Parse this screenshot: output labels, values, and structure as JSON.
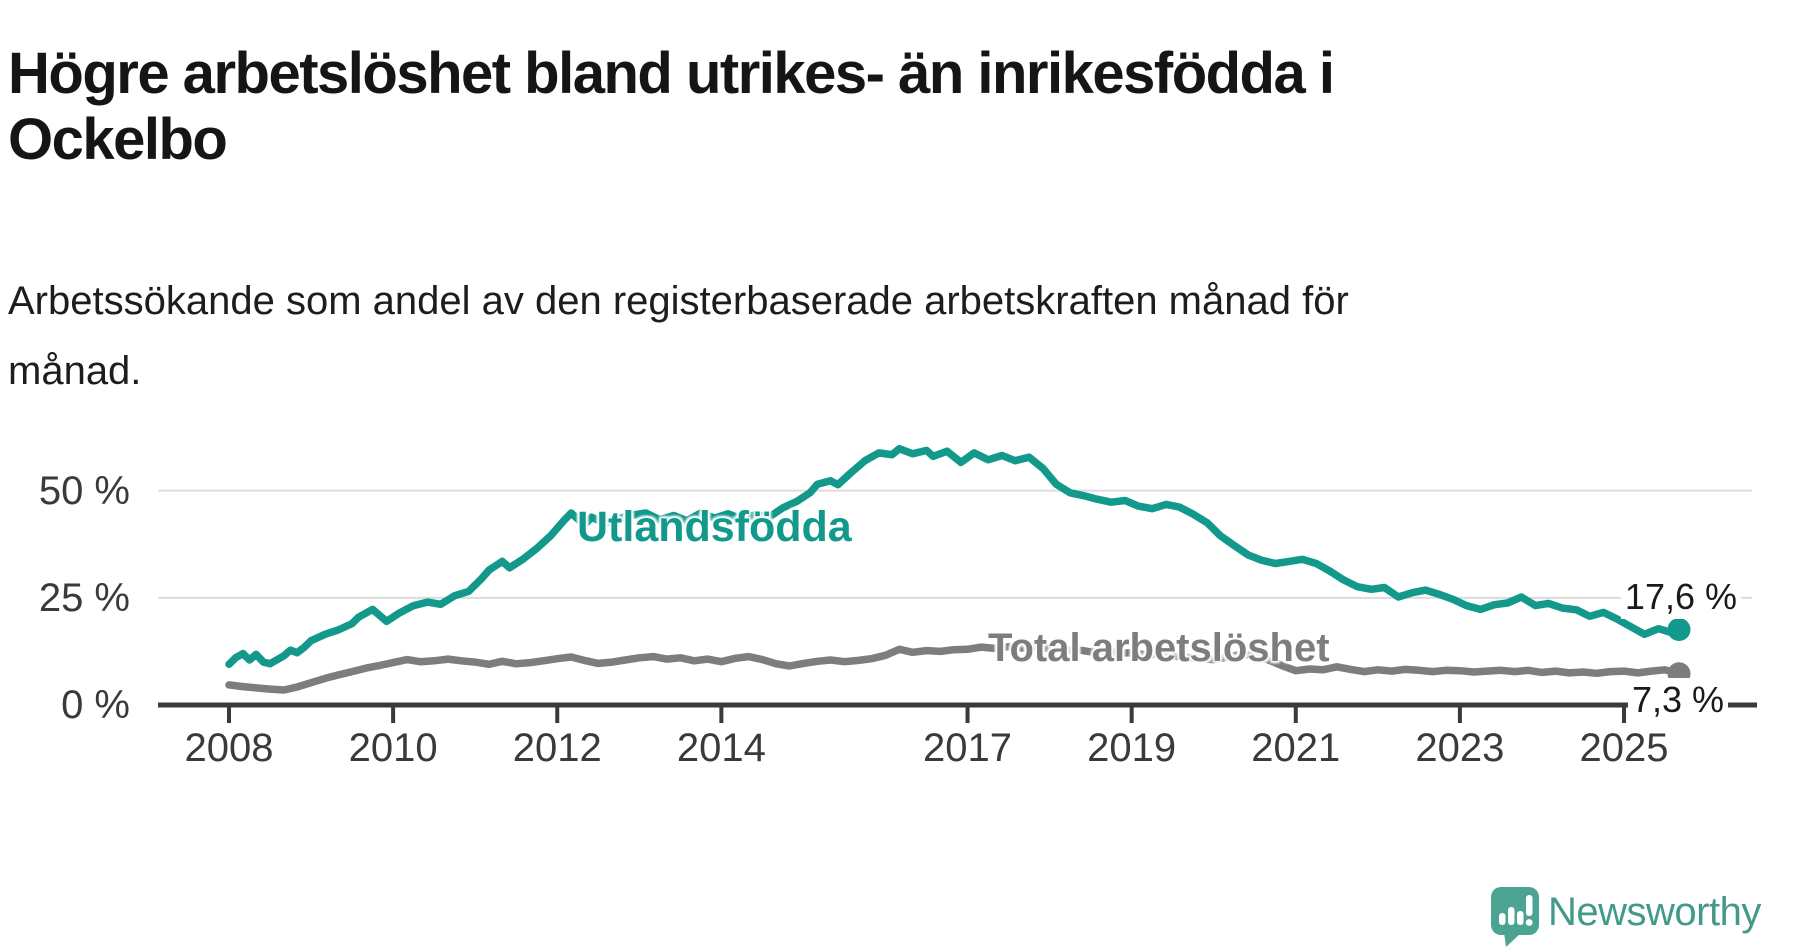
{
  "page": {
    "title": "Högre arbetslöshet bland utrikes- än inrikesfödda i\nOckelbo",
    "subtitle": "Arbetssökande som andel av den registerbaserade arbetskraften månad för\nmånad.",
    "branding": {
      "logo_text": "Newsworthy",
      "logo_icon": "newsworthy-speech-bubble-bars-icon"
    }
  },
  "colors": {
    "series_foreign_born": "#12998b",
    "series_total": "#7d7d80",
    "grid": "#dcdcdc",
    "axis": "#3a3a3a",
    "text": "#1a1a1a",
    "logo": "#4ba392"
  },
  "chart_data": {
    "type": "line",
    "unit": "%",
    "grid": "horizontal",
    "legend_position": "inline-labels",
    "x_range": [
      2008,
      2025.75
    ],
    "y_axis": {
      "range": [
        0,
        62
      ],
      "ticks": [
        {
          "value": 0,
          "label": "0 %"
        },
        {
          "value": 25,
          "label": "25 %"
        },
        {
          "value": 50,
          "label": "50 %"
        }
      ]
    },
    "x_axis": {
      "ticks": [
        {
          "year": 2008,
          "label": "2008"
        },
        {
          "year": 2010,
          "label": "2010"
        },
        {
          "year": 2012,
          "label": "2012"
        },
        {
          "year": 2014,
          "label": "2014"
        },
        {
          "year": 2017,
          "label": "2017"
        },
        {
          "year": 2019,
          "label": "2019"
        },
        {
          "year": 2021,
          "label": "2021"
        },
        {
          "year": 2023,
          "label": "2023"
        },
        {
          "year": 2025,
          "label": "2025"
        }
      ]
    },
    "series": [
      {
        "name": "Utlandsfödda",
        "color": "#12998b",
        "end_value": 17.6,
        "end_label": "17,6 %",
        "points": [
          [
            2008.0,
            9.5
          ],
          [
            2008.08,
            11.0
          ],
          [
            2008.17,
            12.0
          ],
          [
            2008.25,
            10.5
          ],
          [
            2008.33,
            11.8
          ],
          [
            2008.42,
            10.0
          ],
          [
            2008.5,
            9.6
          ],
          [
            2008.58,
            10.5
          ],
          [
            2008.67,
            11.5
          ],
          [
            2008.75,
            12.8
          ],
          [
            2008.83,
            12.2
          ],
          [
            2008.92,
            13.5
          ],
          [
            2009.0,
            15.0
          ],
          [
            2009.17,
            16.5
          ],
          [
            2009.33,
            17.5
          ],
          [
            2009.5,
            19.0
          ],
          [
            2009.58,
            20.5
          ],
          [
            2009.75,
            22.3
          ],
          [
            2009.92,
            19.5
          ],
          [
            2010.08,
            21.5
          ],
          [
            2010.25,
            23.2
          ],
          [
            2010.42,
            24.0
          ],
          [
            2010.58,
            23.5
          ],
          [
            2010.75,
            25.5
          ],
          [
            2010.92,
            26.5
          ],
          [
            2011.08,
            29.5
          ],
          [
            2011.17,
            31.5
          ],
          [
            2011.33,
            33.5
          ],
          [
            2011.42,
            32.0
          ],
          [
            2011.58,
            34.0
          ],
          [
            2011.75,
            36.5
          ],
          [
            2011.92,
            39.5
          ],
          [
            2012.08,
            43.0
          ],
          [
            2012.17,
            44.8
          ],
          [
            2012.33,
            42.0
          ],
          [
            2012.42,
            43.8
          ],
          [
            2012.58,
            42.3
          ],
          [
            2012.75,
            43.5
          ],
          [
            2012.92,
            44.3
          ],
          [
            2013.08,
            44.8
          ],
          [
            2013.25,
            43.2
          ],
          [
            2013.42,
            44.2
          ],
          [
            2013.58,
            43.0
          ],
          [
            2013.75,
            44.8
          ],
          [
            2013.92,
            43.6
          ],
          [
            2014.08,
            44.6
          ],
          [
            2014.25,
            43.4
          ],
          [
            2014.42,
            44.4
          ],
          [
            2014.58,
            43.8
          ],
          [
            2014.75,
            46.0
          ],
          [
            2014.92,
            47.5
          ],
          [
            2015.08,
            49.5
          ],
          [
            2015.17,
            51.5
          ],
          [
            2015.33,
            52.3
          ],
          [
            2015.42,
            51.4
          ],
          [
            2015.58,
            54.2
          ],
          [
            2015.75,
            57.0
          ],
          [
            2015.92,
            58.8
          ],
          [
            2016.08,
            58.4
          ],
          [
            2016.17,
            59.8
          ],
          [
            2016.33,
            58.6
          ],
          [
            2016.5,
            59.4
          ],
          [
            2016.58,
            58.0
          ],
          [
            2016.75,
            59.2
          ],
          [
            2016.92,
            56.6
          ],
          [
            2017.08,
            58.8
          ],
          [
            2017.25,
            57.2
          ],
          [
            2017.42,
            58.2
          ],
          [
            2017.58,
            57.0
          ],
          [
            2017.75,
            57.8
          ],
          [
            2017.92,
            55.2
          ],
          [
            2018.08,
            51.5
          ],
          [
            2018.25,
            49.5
          ],
          [
            2018.42,
            48.8
          ],
          [
            2018.58,
            48.0
          ],
          [
            2018.75,
            47.3
          ],
          [
            2018.92,
            47.7
          ],
          [
            2019.08,
            46.4
          ],
          [
            2019.25,
            45.8
          ],
          [
            2019.42,
            46.8
          ],
          [
            2019.58,
            46.2
          ],
          [
            2019.75,
            44.5
          ],
          [
            2019.92,
            42.5
          ],
          [
            2020.08,
            39.5
          ],
          [
            2020.25,
            37.2
          ],
          [
            2020.42,
            35.0
          ],
          [
            2020.58,
            33.8
          ],
          [
            2020.75,
            33.0
          ],
          [
            2020.92,
            33.5
          ],
          [
            2021.08,
            34.0
          ],
          [
            2021.25,
            33.0
          ],
          [
            2021.42,
            31.2
          ],
          [
            2021.58,
            29.2
          ],
          [
            2021.75,
            27.6
          ],
          [
            2021.92,
            27.0
          ],
          [
            2022.08,
            27.4
          ],
          [
            2022.25,
            25.2
          ],
          [
            2022.42,
            26.2
          ],
          [
            2022.58,
            26.8
          ],
          [
            2022.75,
            25.8
          ],
          [
            2022.92,
            24.6
          ],
          [
            2023.08,
            23.2
          ],
          [
            2023.25,
            22.3
          ],
          [
            2023.42,
            23.4
          ],
          [
            2023.58,
            23.8
          ],
          [
            2023.75,
            25.2
          ],
          [
            2023.92,
            23.2
          ],
          [
            2024.08,
            23.7
          ],
          [
            2024.25,
            22.6
          ],
          [
            2024.42,
            22.2
          ],
          [
            2024.58,
            20.7
          ],
          [
            2024.75,
            21.6
          ],
          [
            2024.92,
            20.0
          ],
          [
            2025.08,
            18.3
          ],
          [
            2025.25,
            16.5
          ],
          [
            2025.42,
            17.8
          ],
          [
            2025.58,
            16.9
          ],
          [
            2025.67,
            17.6
          ]
        ]
      },
      {
        "name": "Total arbetslöshet",
        "color": "#7d7d80",
        "end_value": 7.3,
        "end_label": "7,3 %",
        "points": [
          [
            2008.0,
            4.7
          ],
          [
            2008.17,
            4.3
          ],
          [
            2008.33,
            4.0
          ],
          [
            2008.5,
            3.7
          ],
          [
            2008.67,
            3.5
          ],
          [
            2008.83,
            4.2
          ],
          [
            2009.0,
            5.2
          ],
          [
            2009.17,
            6.2
          ],
          [
            2009.33,
            7.0
          ],
          [
            2009.5,
            7.8
          ],
          [
            2009.67,
            8.6
          ],
          [
            2009.83,
            9.2
          ],
          [
            2010.0,
            9.9
          ],
          [
            2010.17,
            10.6
          ],
          [
            2010.33,
            10.1
          ],
          [
            2010.5,
            10.3
          ],
          [
            2010.67,
            10.7
          ],
          [
            2010.83,
            10.3
          ],
          [
            2011.0,
            10.0
          ],
          [
            2011.17,
            9.5
          ],
          [
            2011.33,
            10.2
          ],
          [
            2011.5,
            9.6
          ],
          [
            2011.67,
            9.9
          ],
          [
            2011.83,
            10.3
          ],
          [
            2012.0,
            10.8
          ],
          [
            2012.17,
            11.2
          ],
          [
            2012.33,
            10.4
          ],
          [
            2012.5,
            9.7
          ],
          [
            2012.67,
            10.0
          ],
          [
            2012.83,
            10.5
          ],
          [
            2013.0,
            11.0
          ],
          [
            2013.17,
            11.3
          ],
          [
            2013.33,
            10.7
          ],
          [
            2013.5,
            11.0
          ],
          [
            2013.67,
            10.3
          ],
          [
            2013.83,
            10.7
          ],
          [
            2014.0,
            10.1
          ],
          [
            2014.17,
            10.9
          ],
          [
            2014.33,
            11.3
          ],
          [
            2014.5,
            10.6
          ],
          [
            2014.67,
            9.6
          ],
          [
            2014.83,
            9.1
          ],
          [
            2015.0,
            9.7
          ],
          [
            2015.17,
            10.2
          ],
          [
            2015.33,
            10.5
          ],
          [
            2015.5,
            10.1
          ],
          [
            2015.67,
            10.4
          ],
          [
            2015.83,
            10.8
          ],
          [
            2016.0,
            11.6
          ],
          [
            2016.17,
            13.0
          ],
          [
            2016.33,
            12.3
          ],
          [
            2016.5,
            12.7
          ],
          [
            2016.67,
            12.5
          ],
          [
            2016.83,
            12.9
          ],
          [
            2017.0,
            13.0
          ],
          [
            2017.17,
            13.5
          ],
          [
            2017.33,
            13.2
          ],
          [
            2017.5,
            13.6
          ],
          [
            2017.67,
            13.3
          ],
          [
            2017.83,
            13.6
          ],
          [
            2018.0,
            13.1
          ],
          [
            2018.17,
            12.7
          ],
          [
            2018.33,
            12.9
          ],
          [
            2018.5,
            12.4
          ],
          [
            2018.67,
            12.6
          ],
          [
            2018.83,
            12.1
          ],
          [
            2019.0,
            12.2
          ],
          [
            2019.17,
            11.7
          ],
          [
            2019.33,
            11.9
          ],
          [
            2019.5,
            11.4
          ],
          [
            2019.67,
            11.1
          ],
          [
            2019.83,
            10.8
          ],
          [
            2020.0,
            10.6
          ],
          [
            2020.17,
            11.2
          ],
          [
            2020.33,
            11.8
          ],
          [
            2020.5,
            11.5
          ],
          [
            2020.67,
            10.5
          ],
          [
            2020.83,
            9.2
          ],
          [
            2021.0,
            8.0
          ],
          [
            2021.17,
            8.4
          ],
          [
            2021.33,
            8.2
          ],
          [
            2021.5,
            8.9
          ],
          [
            2021.67,
            8.3
          ],
          [
            2021.83,
            7.8
          ],
          [
            2022.0,
            8.2
          ],
          [
            2022.17,
            7.9
          ],
          [
            2022.33,
            8.3
          ],
          [
            2022.5,
            8.1
          ],
          [
            2022.67,
            7.8
          ],
          [
            2022.83,
            8.1
          ],
          [
            2023.0,
            8.0
          ],
          [
            2023.17,
            7.7
          ],
          [
            2023.33,
            7.9
          ],
          [
            2023.5,
            8.1
          ],
          [
            2023.67,
            7.8
          ],
          [
            2023.83,
            8.1
          ],
          [
            2024.0,
            7.6
          ],
          [
            2024.17,
            7.9
          ],
          [
            2024.33,
            7.5
          ],
          [
            2024.5,
            7.7
          ],
          [
            2024.67,
            7.4
          ],
          [
            2024.83,
            7.8
          ],
          [
            2025.0,
            7.9
          ],
          [
            2025.17,
            7.5
          ],
          [
            2025.33,
            7.9
          ],
          [
            2025.5,
            8.2
          ],
          [
            2025.67,
            7.3
          ]
        ]
      }
    ]
  }
}
